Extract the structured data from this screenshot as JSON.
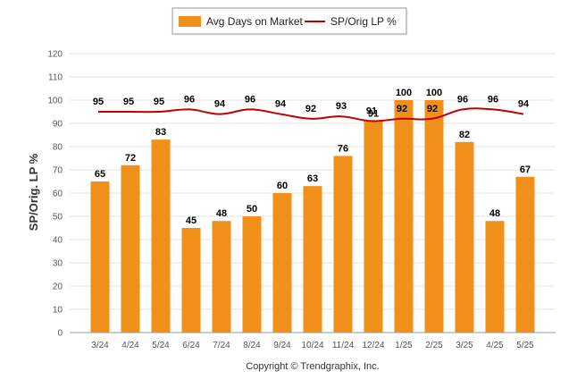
{
  "chart_data": {
    "type": "bar",
    "ylabel": "SP/Orig. LP %",
    "ylim": [
      0,
      120
    ],
    "yticks": [
      0,
      10,
      20,
      30,
      40,
      50,
      60,
      70,
      80,
      90,
      100,
      110,
      120
    ],
    "categories": [
      "3/24",
      "4/24",
      "5/24",
      "6/24",
      "7/24",
      "8/24",
      "9/24",
      "10/24",
      "11/24",
      "12/24",
      "1/25",
      "2/25",
      "3/25",
      "4/25",
      "5/25"
    ],
    "series": [
      {
        "name": "Avg Days on Market",
        "type": "bar",
        "color": "#F0901A",
        "values": [
          65,
          72,
          83,
          45,
          48,
          50,
          60,
          63,
          76,
          91,
          100,
          100,
          82,
          48,
          67
        ]
      },
      {
        "name": "SP/Orig LP %",
        "type": "line",
        "color": "#C00000",
        "values": [
          95,
          95,
          95,
          96,
          94,
          96,
          94,
          92,
          93,
          91,
          92,
          92,
          96,
          96,
          94
        ]
      }
    ],
    "legend": "top-center",
    "grid": true
  },
  "footer": {
    "copyright": "Copyright © Trendgraphix, Inc."
  }
}
